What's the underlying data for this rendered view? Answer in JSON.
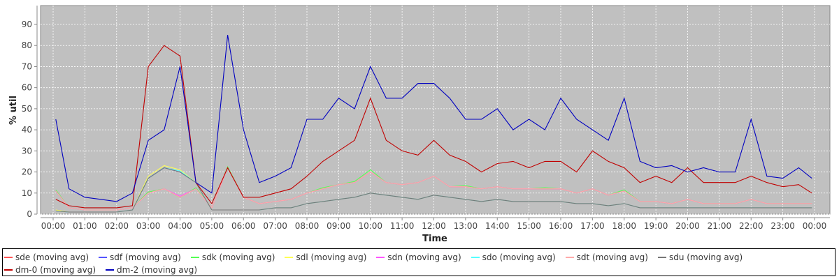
{
  "chart_data": {
    "type": "line",
    "title": "",
    "xlabel": "Time",
    "ylabel": "% util",
    "ylim": [
      0,
      98
    ],
    "yticks": [
      "0",
      "10",
      "20",
      "30",
      "40",
      "50",
      "60",
      "70",
      "80",
      "90"
    ],
    "xticks": [
      "00:00",
      "01:00",
      "02:00",
      "03:00",
      "04:00",
      "05:00",
      "06:00",
      "07:00",
      "08:00",
      "09:00",
      "10:00",
      "11:00",
      "12:00",
      "13:00",
      "14:00",
      "15:00",
      "16:00",
      "17:00",
      "18:00",
      "19:00",
      "20:00",
      "21:00",
      "22:00",
      "23:00",
      "00:00"
    ],
    "x_minutes": [
      5,
      30,
      60,
      90,
      120,
      150,
      180,
      210,
      240,
      270,
      300,
      330,
      360,
      390,
      420,
      450,
      480,
      510,
      540,
      570,
      600,
      630,
      660,
      690,
      720,
      750,
      780,
      810,
      840,
      870,
      900,
      930,
      960,
      990,
      1020,
      1050,
      1080,
      1110,
      1140,
      1170,
      1200,
      1230,
      1260,
      1290,
      1320,
      1350,
      1380,
      1410,
      1435
    ],
    "grid": true,
    "legend_position": "bottom",
    "series": [
      {
        "name": "sde (moving avg)",
        "color": "#ff5555",
        "values": [
          11,
          3,
          2,
          2,
          2,
          3,
          10,
          12,
          8,
          12,
          3,
          22,
          8,
          5,
          6,
          7,
          10,
          12,
          14,
          15,
          20,
          15,
          14,
          15,
          18,
          13,
          13,
          12,
          13,
          12,
          12,
          12,
          12,
          10,
          12,
          9,
          11,
          6,
          6,
          5,
          7,
          5,
          5,
          5,
          7,
          5,
          5,
          5,
          5
        ]
      },
      {
        "name": "sdf (moving avg)",
        "color": "#5555ff",
        "values": [
          1.5,
          1,
          1,
          1,
          1,
          2,
          17,
          22,
          20,
          15,
          2,
          2,
          2,
          2,
          3,
          3,
          5,
          6,
          7,
          8,
          10,
          9,
          8,
          7,
          9,
          8,
          7,
          6,
          7,
          6,
          6,
          6,
          6,
          5,
          5,
          4,
          5,
          3,
          3,
          3,
          3,
          3,
          3,
          3,
          3,
          3,
          3,
          3,
          3
        ]
      },
      {
        "name": "sdk (moving avg)",
        "color": "#55ff55",
        "values": [
          11.5,
          3,
          2,
          2,
          2,
          3,
          10.5,
          12,
          8,
          12.5,
          3,
          22.5,
          8,
          5,
          6,
          7,
          10,
          12.5,
          14,
          15.5,
          21,
          15,
          14,
          15,
          18,
          13,
          13.5,
          12,
          13,
          12,
          12,
          12.5,
          12,
          10,
          12,
          9,
          11.5,
          6,
          6,
          5,
          7,
          5,
          5,
          5,
          7,
          5,
          5,
          5,
          5
        ]
      },
      {
        "name": "sdl (moving avg)",
        "color": "#ffff55",
        "values": [
          2,
          1,
          1,
          1,
          1,
          2,
          18,
          23,
          21,
          15,
          2,
          2,
          2,
          2,
          3,
          3,
          5,
          6,
          7,
          8,
          10,
          9,
          8,
          7,
          9,
          8,
          7,
          6,
          7,
          6,
          6,
          6,
          6,
          5,
          5,
          4,
          5,
          3,
          3,
          3,
          3,
          3,
          3,
          3,
          3,
          3,
          3,
          3,
          3
        ]
      },
      {
        "name": "sdn (moving avg)",
        "color": "#ff55ff",
        "values": [
          11,
          3,
          2,
          2,
          2,
          3,
          10,
          12,
          8.5,
          12,
          3,
          22,
          8,
          5,
          6,
          7,
          10,
          12,
          14,
          15,
          20,
          15,
          14,
          15,
          18,
          13,
          13,
          12,
          13,
          12,
          12,
          12,
          12,
          10,
          12,
          9,
          11,
          6,
          6,
          5,
          7,
          5,
          5,
          5,
          7,
          5,
          5,
          5,
          5
        ]
      },
      {
        "name": "sdo (moving avg)",
        "color": "#55ffff",
        "values": [
          1.5,
          1,
          1,
          1,
          1,
          2,
          17,
          22,
          20.5,
          15,
          2,
          2,
          2,
          2,
          3,
          3,
          5,
          6,
          7,
          8,
          10,
          9,
          8,
          7,
          9,
          8,
          7,
          6,
          7,
          6,
          6,
          6,
          6,
          5,
          5,
          4,
          5,
          3,
          3,
          3,
          3,
          3,
          3,
          3,
          3,
          3,
          3,
          3,
          3
        ]
      },
      {
        "name": "sdt (moving avg)",
        "color": "#ffaaaa",
        "values": [
          11,
          3,
          2,
          2,
          2,
          3,
          10,
          12,
          8,
          12,
          3,
          22,
          8,
          5,
          6,
          7,
          10,
          12,
          14,
          15,
          20,
          15,
          14,
          15,
          18,
          13,
          13,
          12,
          13,
          12,
          12,
          12,
          12,
          10,
          12,
          9,
          11,
          6,
          6,
          5,
          7,
          5,
          5,
          5,
          7,
          5,
          5,
          5,
          5
        ]
      },
      {
        "name": "sdu (moving avg)",
        "color": "#777777",
        "values": [
          1.5,
          1,
          1,
          1,
          1,
          2,
          17,
          22,
          20,
          15,
          2,
          2,
          2,
          2,
          3,
          3,
          5,
          6,
          7,
          8,
          10,
          9,
          8,
          7,
          9,
          8,
          7,
          6,
          7,
          6,
          6,
          6,
          6,
          5,
          5,
          4,
          5,
          3,
          3,
          3,
          3,
          3,
          3,
          3,
          3,
          3,
          3,
          3,
          3
        ]
      },
      {
        "name": "dm-0 (moving avg)",
        "color": "#c00000",
        "values": [
          7,
          4,
          3,
          3,
          3,
          4,
          70,
          80,
          75,
          15,
          5,
          22,
          8,
          8,
          10,
          12,
          18,
          25,
          30,
          35,
          55,
          35,
          30,
          28,
          35,
          28,
          25,
          20,
          24,
          25,
          22,
          25,
          25,
          20,
          30,
          25,
          22,
          15,
          18,
          15,
          22,
          15,
          15,
          15,
          18,
          15,
          13,
          14,
          10
        ]
      },
      {
        "name": "dm-2 (moving avg)",
        "color": "#0000c0",
        "values": [
          45,
          12,
          8,
          7,
          6,
          10,
          35,
          40,
          70,
          15,
          10,
          85,
          40,
          15,
          18,
          22,
          45,
          45,
          55,
          50,
          70,
          55,
          55,
          62,
          62,
          55,
          45,
          45,
          50,
          40,
          45,
          40,
          55,
          45,
          40,
          35,
          55,
          25,
          22,
          23,
          20,
          22,
          20,
          20,
          45,
          18,
          17,
          22,
          17
        ]
      }
    ]
  }
}
